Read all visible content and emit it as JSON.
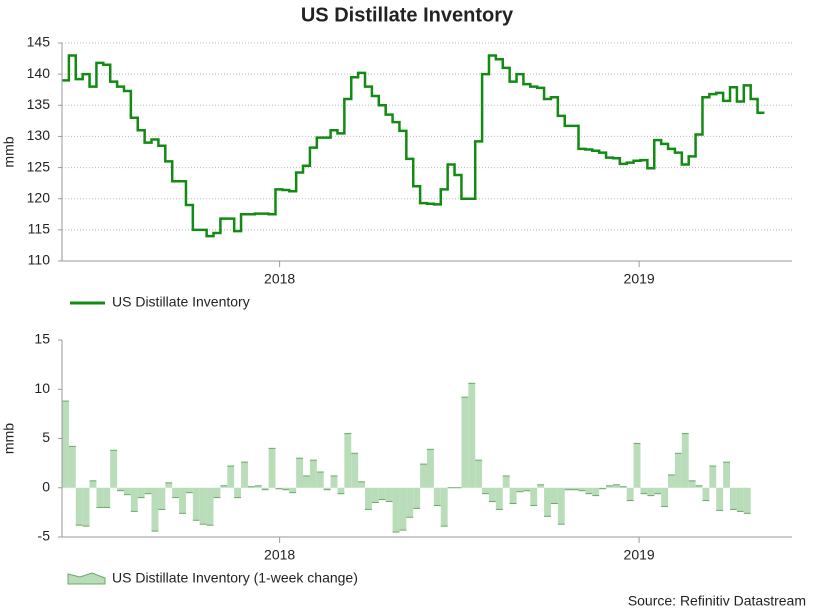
{
  "title": "US Distillate Inventory",
  "source": "Source: Refinitiv Datastream",
  "chart_data": [
    {
      "type": "step-line",
      "ylabel": "mmb",
      "xlim": [
        0,
        106
      ],
      "xticks": [
        {
          "value": 31.6,
          "label": "2018"
        },
        {
          "value": 83.8,
          "label": "2019"
        }
      ],
      "ylim": [
        110,
        145
      ],
      "yticks": [
        110,
        115,
        120,
        125,
        130,
        135,
        140,
        145
      ],
      "grid": true,
      "series": [
        {
          "name": "US Distillate Inventory",
          "color": "#138a13",
          "values": [
            139,
            143,
            139.2,
            140,
            138,
            141.8,
            141.5,
            138.8,
            138,
            137.3,
            133,
            131,
            129,
            129.5,
            128.5,
            126,
            122.8,
            122.8,
            119,
            115,
            115,
            114,
            114.5,
            116.8,
            116.8,
            114.8,
            117.5,
            117.5,
            117.6,
            117.6,
            117.5,
            121.5,
            121.4,
            121.2,
            124.2,
            125.3,
            128.2,
            129.8,
            129.8,
            131,
            130.5,
            136,
            139.5,
            140.2,
            138,
            136.5,
            135,
            133.5,
            132.3,
            130.9,
            126.4,
            122,
            119.3,
            119.2,
            119.1,
            121.5,
            125.5,
            123.8,
            120,
            120,
            129.2,
            140,
            143,
            142.4,
            141,
            138.8,
            140,
            138.4,
            138,
            137.8,
            136,
            136.3,
            133.3,
            131.7,
            131.7,
            128,
            127.9,
            127.7,
            127.4,
            126.6,
            126.5,
            125.6,
            125.8,
            126.1,
            126.2,
            124.9,
            129.4,
            128.8,
            128,
            127.4,
            125.5,
            126.8,
            130.3,
            136.3,
            136.8,
            137,
            135.7,
            137.9,
            135.6,
            138.2,
            136,
            133.8
          ]
        }
      ]
    },
    {
      "type": "step-area",
      "ylabel": "mmb",
      "xlim": [
        0,
        106
      ],
      "xticks": [
        {
          "value": 31.6,
          "label": "2018"
        },
        {
          "value": 83.8,
          "label": "2019"
        }
      ],
      "ylim": [
        -5,
        15
      ],
      "yticks": [
        -5,
        0,
        5,
        10,
        15
      ],
      "grid": false,
      "series": [
        {
          "name": "US Distillate Inventory (1-week change)",
          "color": "#b9dcb9",
          "values": [
            8.8,
            4.2,
            -3.8,
            -3.9,
            0.7,
            -2,
            -2,
            3.8,
            -0.3,
            -0.7,
            -2.4,
            -1,
            -0.6,
            -4.4,
            -2.2,
            0.5,
            -1,
            -2.6,
            -0.5,
            -3.3,
            -3.7,
            -3.8,
            -1,
            0.2,
            2.2,
            -1,
            2.6,
            0.1,
            0.2,
            -0.2,
            4,
            -0.1,
            -0.2,
            -0.5,
            3,
            1.2,
            2.8,
            1.6,
            -0.2,
            1.2,
            -0.6,
            5.5,
            3.5,
            0.6,
            -2.2,
            -1.5,
            -1.2,
            -1.4,
            -4.5,
            -4.3,
            -3,
            -2.1,
            2.4,
            3.9,
            -1.8,
            -3.9,
            0,
            0,
            9.2,
            10.6,
            2.8,
            -0.6,
            -1.4,
            -2.2,
            1.2,
            -1.6,
            -0.4,
            -0.3,
            -1.8,
            0.3,
            -2.9,
            -1.6,
            -3.7,
            -0.2,
            -0.2,
            -0.3,
            -0.6,
            -0.8,
            -0.1,
            0.2,
            0.3,
            0.1,
            -1.3,
            4.5,
            -0.6,
            -0.8,
            -0.6,
            -1.9,
            1.3,
            3.5,
            5.5,
            0.7,
            0.2,
            -1.3,
            2.2,
            -2.3,
            2.6,
            -2.2,
            -2.4,
            -2.6
          ]
        }
      ]
    }
  ]
}
